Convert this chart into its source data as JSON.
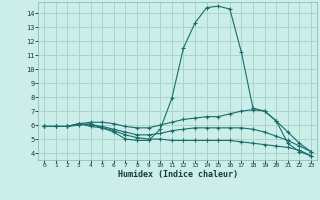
{
  "xlabel": "Humidex (Indice chaleur)",
  "background_color": "#cceee8",
  "grid_color": "#aad4ce",
  "line_color": "#1a6b6b",
  "xlim": [
    -0.5,
    23.5
  ],
  "ylim": [
    3.5,
    14.8
  ],
  "xticks": [
    0,
    1,
    2,
    3,
    4,
    5,
    6,
    7,
    8,
    9,
    10,
    11,
    12,
    13,
    14,
    15,
    16,
    17,
    18,
    19,
    20,
    21,
    22,
    23
  ],
  "yticks": [
    4,
    5,
    6,
    7,
    8,
    9,
    10,
    11,
    12,
    13,
    14
  ],
  "series": [
    [
      5.9,
      5.9,
      5.9,
      6.0,
      6.1,
      5.8,
      5.5,
      5.0,
      4.9,
      4.9,
      5.7,
      7.9,
      11.5,
      13.3,
      14.4,
      14.5,
      14.3,
      11.2,
      7.2,
      7.0,
      6.3,
      4.7,
      4.1,
      3.8
    ],
    [
      5.9,
      5.9,
      5.9,
      6.1,
      6.2,
      6.2,
      6.1,
      5.9,
      5.8,
      5.8,
      6.0,
      6.2,
      6.4,
      6.5,
      6.6,
      6.6,
      6.8,
      7.0,
      7.1,
      7.0,
      6.3,
      5.5,
      4.7,
      4.1
    ],
    [
      5.9,
      5.9,
      5.9,
      6.1,
      6.0,
      5.9,
      5.7,
      5.5,
      5.3,
      5.3,
      5.4,
      5.6,
      5.7,
      5.8,
      5.8,
      5.8,
      5.8,
      5.8,
      5.7,
      5.5,
      5.2,
      4.9,
      4.5,
      4.1
    ],
    [
      5.9,
      5.9,
      5.9,
      6.1,
      5.9,
      5.8,
      5.6,
      5.3,
      5.1,
      5.0,
      5.0,
      4.9,
      4.9,
      4.9,
      4.9,
      4.9,
      4.9,
      4.8,
      4.7,
      4.6,
      4.5,
      4.4,
      4.2,
      3.8
    ]
  ]
}
